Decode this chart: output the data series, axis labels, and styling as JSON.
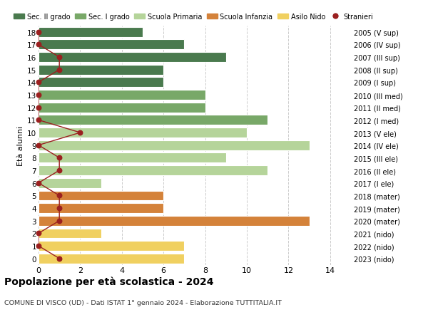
{
  "ages": [
    18,
    17,
    16,
    15,
    14,
    13,
    12,
    11,
    10,
    9,
    8,
    7,
    6,
    5,
    4,
    3,
    2,
    1,
    0
  ],
  "years_labels": [
    "2005 (V sup)",
    "2006 (IV sup)",
    "2007 (III sup)",
    "2008 (II sup)",
    "2009 (I sup)",
    "2010 (III med)",
    "2011 (II med)",
    "2012 (I med)",
    "2013 (V ele)",
    "2014 (IV ele)",
    "2015 (III ele)",
    "2016 (II ele)",
    "2017 (I ele)",
    "2018 (mater)",
    "2019 (mater)",
    "2020 (mater)",
    "2021 (nido)",
    "2022 (nido)",
    "2023 (nido)"
  ],
  "bar_values": [
    5,
    7,
    9,
    6,
    6,
    8,
    8,
    11,
    10,
    13,
    9,
    11,
    3,
    6,
    6,
    13,
    3,
    7,
    7
  ],
  "bar_colors": [
    "#4a7a4e",
    "#4a7a4e",
    "#4a7a4e",
    "#4a7a4e",
    "#4a7a4e",
    "#78a868",
    "#78a868",
    "#78a868",
    "#b5d49a",
    "#b5d49a",
    "#b5d49a",
    "#b5d49a",
    "#b5d49a",
    "#d4823a",
    "#d4823a",
    "#d4823a",
    "#f0d060",
    "#f0d060",
    "#f0d060"
  ],
  "stranieri_values": [
    0,
    0,
    1,
    1,
    0,
    0,
    0,
    0,
    2,
    0,
    1,
    1,
    0,
    1,
    1,
    1,
    0,
    0,
    1
  ],
  "stranieri_color": "#9b2020",
  "legend_labels": [
    "Sec. II grado",
    "Sec. I grado",
    "Scuola Primaria",
    "Scuola Infanzia",
    "Asilo Nido",
    "Stranieri"
  ],
  "legend_colors": [
    "#4a7a4e",
    "#78a868",
    "#b5d49a",
    "#d4823a",
    "#f0d060",
    "#9b2020"
  ],
  "title": "Popolazione per età scolastica - 2024",
  "subtitle": "COMUNE DI VISCO (UD) - Dati ISTAT 1° gennaio 2024 - Elaborazione TUTTITALIA.IT",
  "ylabel_left": "Età alunni",
  "xlim": [
    0,
    15
  ],
  "background_color": "#ffffff",
  "grid_color": "#cccccc"
}
